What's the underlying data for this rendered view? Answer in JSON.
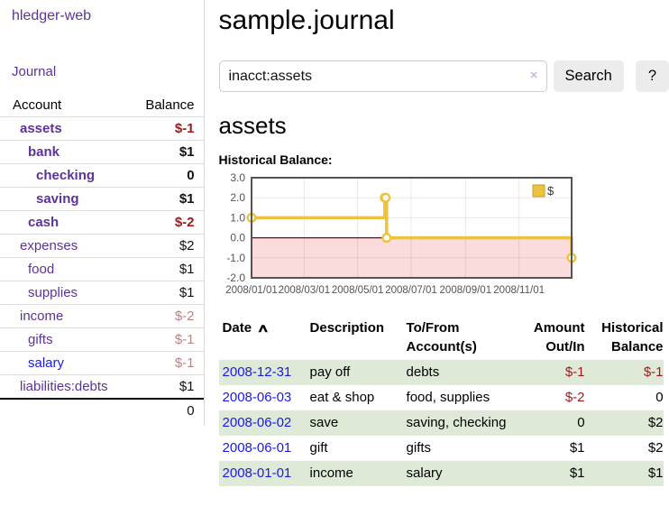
{
  "app": {
    "title": "hledger-web"
  },
  "nav": {
    "journal_label": "Journal"
  },
  "sidebar": {
    "header": {
      "account": "Account",
      "balance": "Balance"
    },
    "accounts": [
      {
        "name": "assets",
        "balance": "$-1",
        "indent": 0,
        "bold": true,
        "balance_style": "neg-strong"
      },
      {
        "name": "bank",
        "balance": "$1",
        "indent": 1,
        "bold": true,
        "balance_style": ""
      },
      {
        "name": "checking",
        "balance": "0",
        "indent": 2,
        "bold": true,
        "balance_style": ""
      },
      {
        "name": "saving",
        "balance": "$1",
        "indent": 2,
        "bold": true,
        "balance_style": ""
      },
      {
        "name": "cash",
        "balance": "$-2",
        "indent": 1,
        "bold": true,
        "balance_style": "neg-strong"
      },
      {
        "name": "expenses",
        "balance": "$2",
        "indent": 0,
        "bold": false,
        "balance_style": ""
      },
      {
        "name": "food",
        "balance": "$1",
        "indent": 1,
        "bold": false,
        "balance_style": ""
      },
      {
        "name": "supplies",
        "balance": "$1",
        "indent": 1,
        "bold": false,
        "balance_style": ""
      },
      {
        "name": "income",
        "balance": "$-2",
        "indent": 0,
        "bold": false,
        "balance_style": "neg-soft"
      },
      {
        "name": "gifts",
        "balance": "$-1",
        "indent": 1,
        "bold": false,
        "balance_style": "neg-soft"
      },
      {
        "name": "salary",
        "balance": "$-1",
        "indent": 1,
        "bold": false,
        "balance_style": "neg-soft",
        "link_color": "blue"
      },
      {
        "name": "liabilities:debts",
        "balance": "$1",
        "indent": 0,
        "bold": false,
        "balance_style": ""
      }
    ],
    "total": "0"
  },
  "header": {
    "title": "sample.journal"
  },
  "search": {
    "value": "inacct:assets",
    "clear_icon": "×",
    "button_label": "Search",
    "help_label": "?"
  },
  "main": {
    "account_title": "assets",
    "chart_label": "Historical Balance:"
  },
  "chart_data": {
    "type": "line",
    "step": true,
    "title": "Historical Balance",
    "series": [
      {
        "name": "$",
        "color": "#EDC240",
        "points": [
          [
            "2008-01-01",
            1
          ],
          [
            "2008-06-01",
            2
          ],
          [
            "2008-06-02",
            2
          ],
          [
            "2008-06-03",
            0
          ],
          [
            "2008-12-31",
            -1
          ]
        ]
      }
    ],
    "x_range": [
      "2008-01-01",
      "2008-12-31"
    ],
    "x_ticks": [
      "2008/01/01",
      "2008/03/01",
      "2008/05/01",
      "2008/07/01",
      "2008/09/01",
      "2008/11/01"
    ],
    "y_ticks": [
      3.0,
      2.0,
      1.0,
      0.0,
      -1.0,
      -2.0
    ],
    "y_tick_labels": [
      "3.0",
      "2.0",
      "1.0",
      "0.0",
      "-1.0",
      "-2.0"
    ],
    "ylim": [
      -2.0,
      3.0
    ],
    "grid": true,
    "legend_position": "top-right",
    "negative_region_color": "#fbdcdc",
    "zero_line_color": "#8b0000",
    "axis_label_color": "#545454",
    "border_color": "#545454"
  },
  "table": {
    "headers": [
      "Date",
      "Description",
      "To/From Account(s)",
      "Amount Out/In",
      "Historical Balance"
    ],
    "sort_icon": "∧",
    "rows": [
      {
        "date": "2008-12-31",
        "description": "pay off",
        "accounts": "debts",
        "amount": "$-1",
        "balance": "$-1"
      },
      {
        "date": "2008-06-03",
        "description": "eat & shop",
        "accounts": "food, supplies",
        "amount": "$-2",
        "balance": "0"
      },
      {
        "date": "2008-06-02",
        "description": "save",
        "accounts": "saving, checking",
        "amount": "0",
        "balance": "$2"
      },
      {
        "date": "2008-06-01",
        "description": "gift",
        "accounts": "gifts",
        "amount": "$1",
        "balance": "$2"
      },
      {
        "date": "2008-01-01",
        "description": "income",
        "accounts": "salary",
        "amount": "$1",
        "balance": "$1"
      }
    ]
  },
  "colors": {
    "link_purple": "#5c3399",
    "link_blue": "#1a1ae6",
    "negative_strong": "#9a1b1b",
    "negative_soft": "#c08082",
    "row_green": "#dfe9d7",
    "chart_gold": "#EDC240"
  }
}
